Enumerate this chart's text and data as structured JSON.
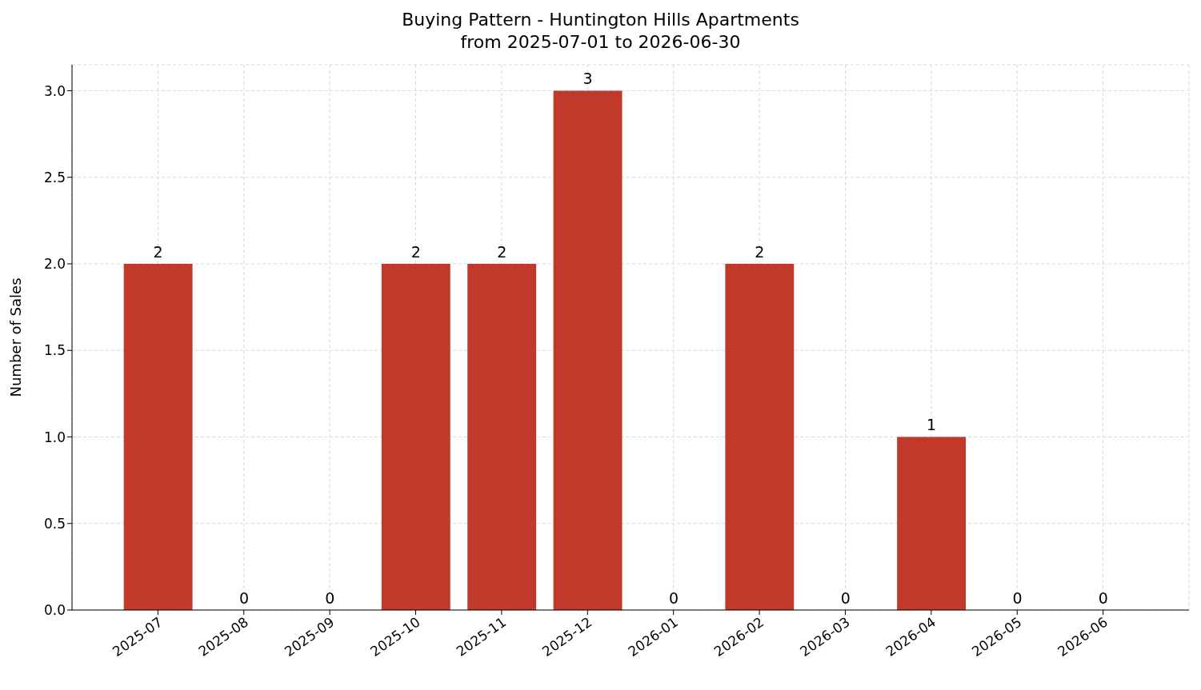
{
  "chart_data": {
    "type": "bar",
    "title": "Buying Pattern - Huntington Hills Apartments\nfrom 2025-07-01 to 2026-06-30",
    "ylabel": "Number of Sales",
    "categories": [
      "2025-07",
      "2025-08",
      "2025-09",
      "2025-10",
      "2025-11",
      "2025-12",
      "2026-01",
      "2026-02",
      "2026-03",
      "2026-04",
      "2026-05",
      "2026-06"
    ],
    "values": [
      2,
      0,
      0,
      2,
      2,
      3,
      0,
      2,
      0,
      1,
      0,
      0
    ],
    "color": "#c0392b",
    "ylim": [
      0,
      3.15
    ],
    "yticks": [
      {
        "value": 0,
        "label": "0.0"
      },
      0.5,
      {
        "value": 1,
        "label": "1.0"
      },
      1.5,
      {
        "value": 2,
        "label": "2.0"
      },
      2.5,
      {
        "value": 3,
        "label": "3.0"
      }
    ],
    "grid": true,
    "data_labels": true
  }
}
